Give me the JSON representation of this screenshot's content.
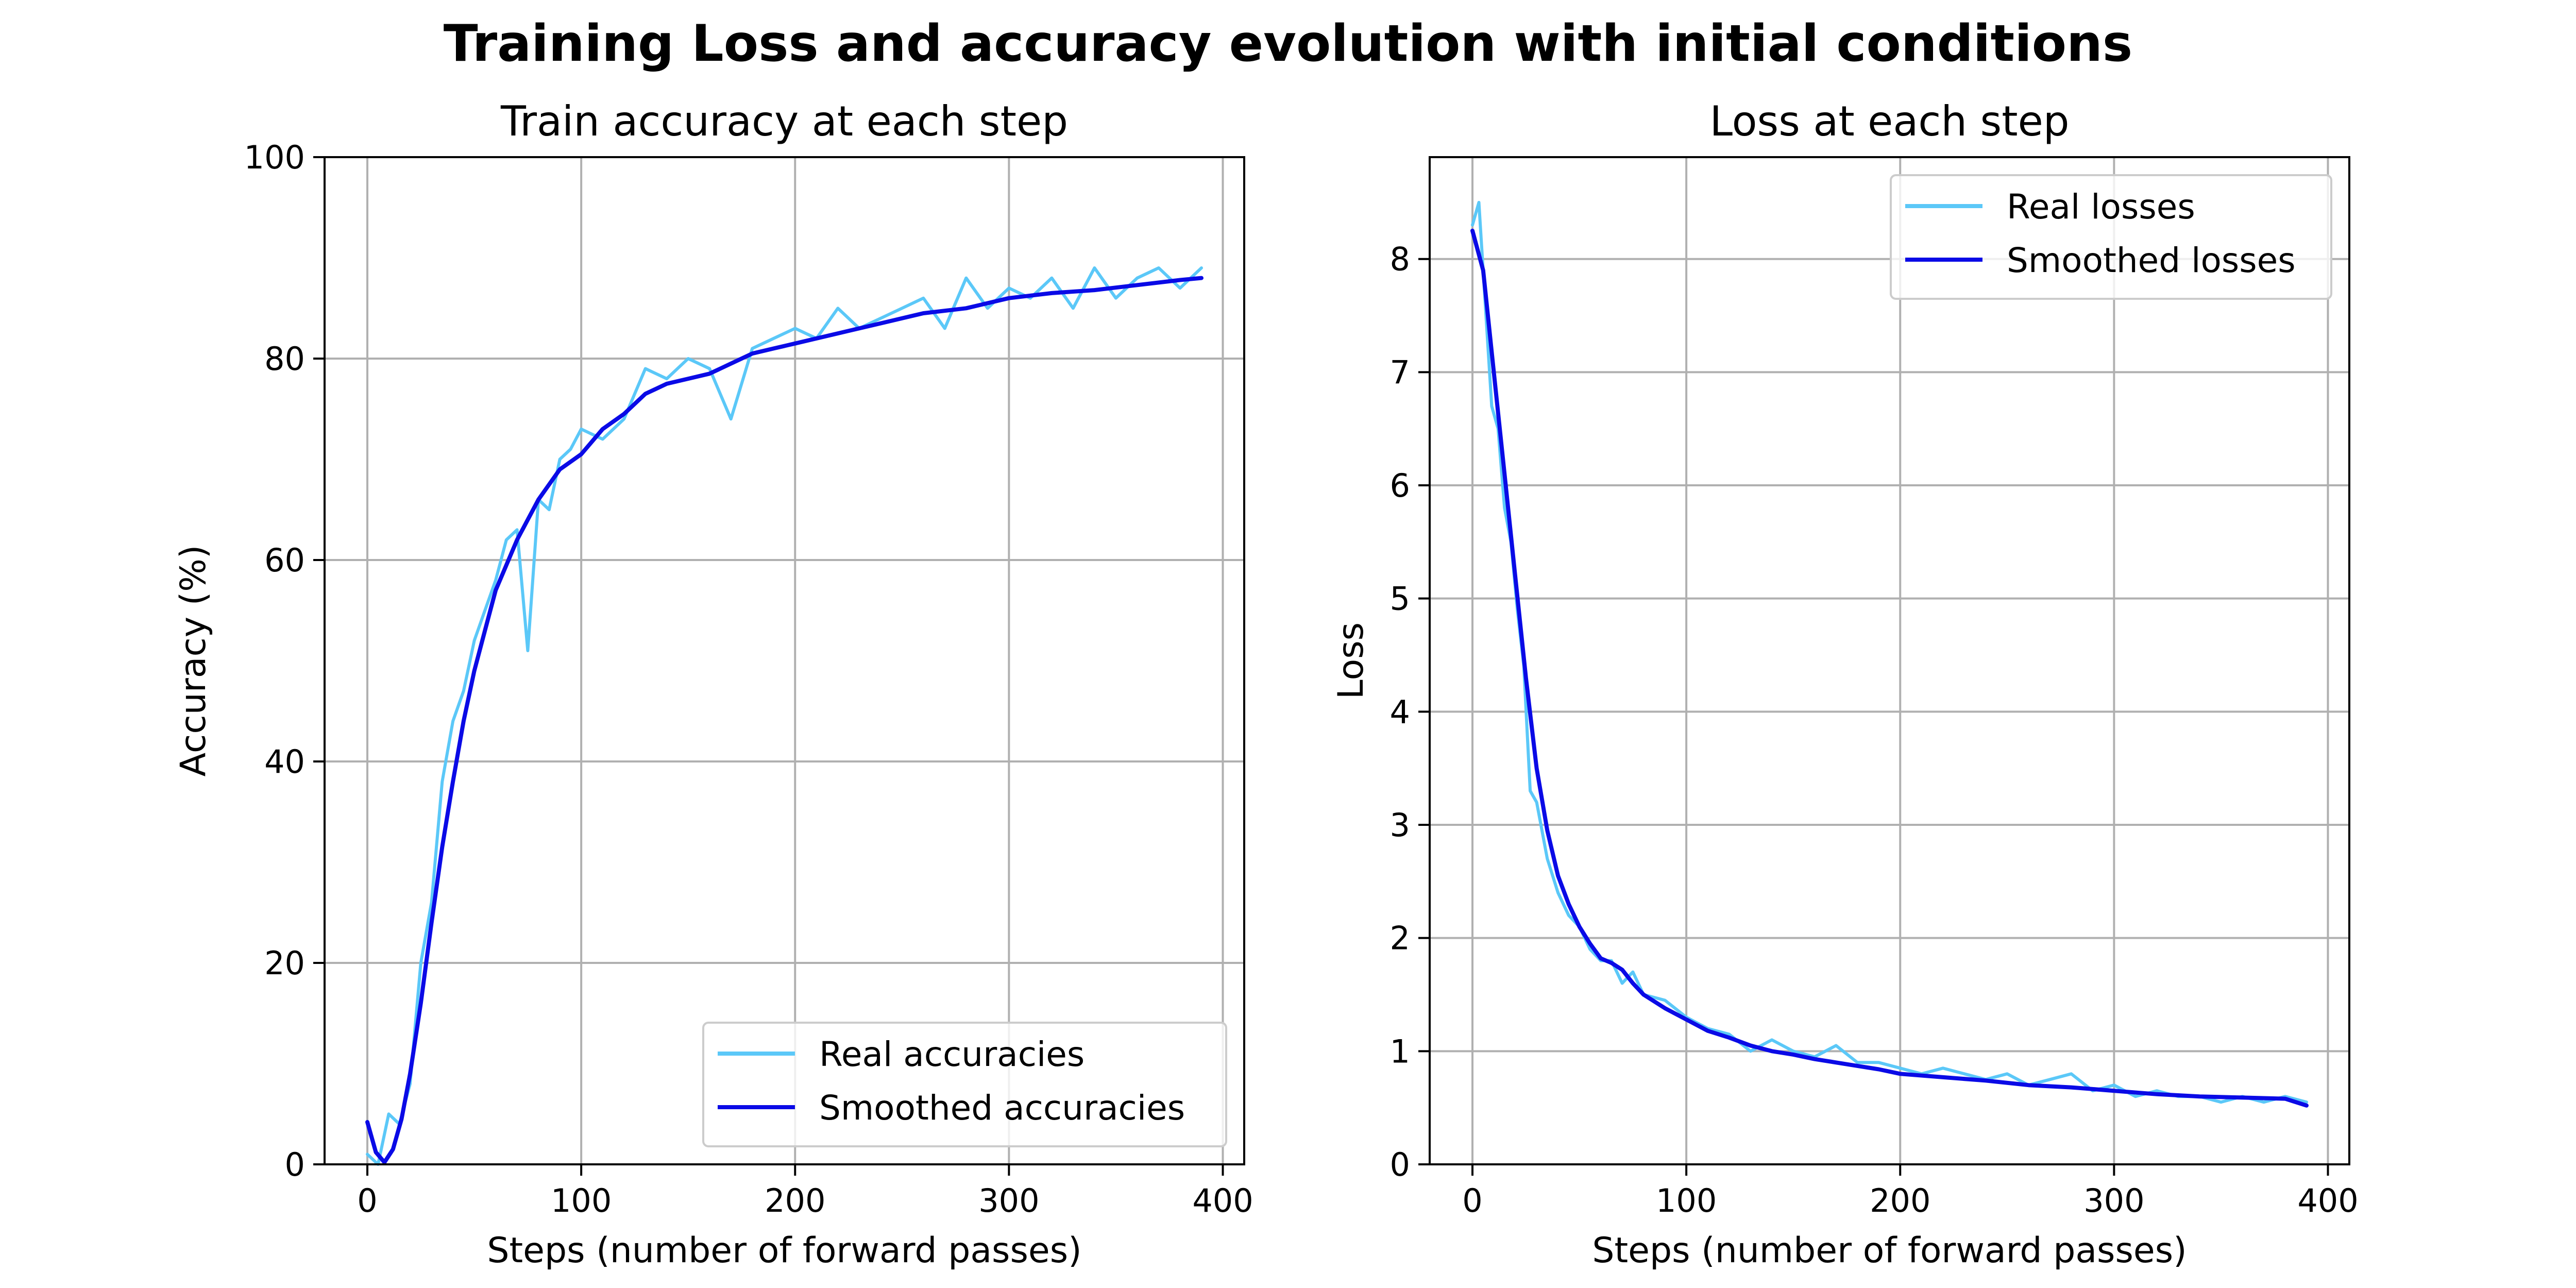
{
  "figure": {
    "title": "Training Loss and accuracy evolution with initial conditions"
  },
  "colors": {
    "real": "#5bc8f8",
    "smoothed": "#0a0ae6"
  },
  "chart_data": [
    {
      "id": "accuracy",
      "type": "line",
      "title": "Train accuracy at each step",
      "xlabel": "Steps (number of forward passes)",
      "ylabel": "Accuracy (%)",
      "xlim": [
        -20,
        410
      ],
      "ylim": [
        0,
        100
      ],
      "xticks": [
        0,
        100,
        200,
        300,
        400
      ],
      "yticks": [
        0,
        20,
        40,
        60,
        80,
        100
      ],
      "grid": true,
      "legend": "lower-right",
      "series": [
        {
          "name": "Real accuracies",
          "color": "#5bc8f8",
          "x": [
            0,
            5,
            10,
            15,
            20,
            25,
            30,
            35,
            40,
            45,
            50,
            55,
            60,
            65,
            70,
            75,
            80,
            85,
            90,
            95,
            100,
            110,
            120,
            130,
            140,
            150,
            160,
            170,
            180,
            190,
            200,
            210,
            220,
            230,
            240,
            250,
            260,
            270,
            280,
            290,
            300,
            310,
            320,
            330,
            340,
            350,
            360,
            370,
            380,
            390
          ],
          "y": [
            1,
            0,
            5,
            4,
            8,
            20,
            26,
            38,
            44,
            47,
            52,
            55,
            58,
            62,
            63,
            51,
            66,
            65,
            70,
            71,
            73,
            72,
            74,
            79,
            78,
            80,
            79,
            74,
            81,
            82,
            83,
            82,
            85,
            83,
            84,
            85,
            86,
            83,
            88,
            85,
            87,
            86,
            88,
            85,
            89,
            86,
            88,
            89,
            87,
            89
          ]
        },
        {
          "name": "Smoothed accuracies",
          "color": "#0a0ae6",
          "x": [
            0,
            4,
            8,
            12,
            16,
            20,
            25,
            30,
            35,
            40,
            45,
            50,
            55,
            60,
            70,
            80,
            90,
            100,
            110,
            120,
            130,
            140,
            150,
            160,
            170,
            180,
            190,
            200,
            220,
            240,
            260,
            280,
            300,
            320,
            340,
            360,
            380,
            390
          ],
          "y": [
            4.2,
            1.2,
            0.2,
            1.5,
            4.5,
            9,
            16,
            24,
            31.5,
            38,
            44,
            49,
            53,
            57,
            62,
            66,
            69,
            70.5,
            73,
            74.5,
            76.5,
            77.5,
            78,
            78.5,
            79.5,
            80.5,
            81,
            81.5,
            82.5,
            83.5,
            84.5,
            85,
            86,
            86.5,
            86.8,
            87.3,
            87.8,
            88
          ]
        }
      ]
    },
    {
      "id": "loss",
      "type": "line",
      "title": "Loss at each step",
      "xlabel": "Steps (number of forward passes)",
      "ylabel": "Loss",
      "xlim": [
        -20,
        410
      ],
      "ylim": [
        0,
        8.9
      ],
      "xticks": [
        0,
        100,
        200,
        300,
        400
      ],
      "yticks": [
        0,
        1,
        2,
        3,
        4,
        5,
        6,
        7,
        8
      ],
      "grid": true,
      "legend": "upper-right",
      "series": [
        {
          "name": "Real losses",
          "color": "#5bc8f8",
          "x": [
            0,
            3,
            6,
            9,
            12,
            15,
            18,
            21,
            24,
            27,
            30,
            35,
            40,
            45,
            50,
            55,
            60,
            65,
            70,
            75,
            80,
            90,
            100,
            110,
            120,
            130,
            140,
            150,
            160,
            170,
            180,
            190,
            200,
            210,
            220,
            230,
            240,
            250,
            260,
            270,
            280,
            290,
            300,
            310,
            320,
            330,
            340,
            350,
            360,
            370,
            380,
            390
          ],
          "y": [
            8.3,
            8.5,
            7.6,
            6.7,
            6.5,
            5.8,
            5.5,
            4.9,
            4.4,
            3.3,
            3.2,
            2.7,
            2.4,
            2.2,
            2.1,
            1.9,
            1.8,
            1.8,
            1.6,
            1.7,
            1.5,
            1.45,
            1.3,
            1.2,
            1.15,
            1.0,
            1.1,
            1.0,
            0.95,
            1.05,
            0.9,
            0.9,
            0.85,
            0.8,
            0.85,
            0.8,
            0.75,
            0.8,
            0.7,
            0.75,
            0.8,
            0.65,
            0.7,
            0.6,
            0.65,
            0.6,
            0.6,
            0.55,
            0.6,
            0.55,
            0.6,
            0.55
          ]
        },
        {
          "name": "Smoothed losses",
          "color": "#0a0ae6",
          "x": [
            0,
            5,
            10,
            15,
            20,
            25,
            30,
            35,
            40,
            45,
            50,
            55,
            60,
            65,
            70,
            75,
            80,
            90,
            100,
            110,
            120,
            130,
            140,
            150,
            160,
            170,
            180,
            190,
            200,
            220,
            240,
            260,
            280,
            300,
            320,
            340,
            360,
            380,
            390
          ],
          "y": [
            8.25,
            7.9,
            7.0,
            6.1,
            5.2,
            4.3,
            3.5,
            2.95,
            2.55,
            2.3,
            2.1,
            1.95,
            1.82,
            1.78,
            1.72,
            1.6,
            1.5,
            1.38,
            1.28,
            1.18,
            1.12,
            1.05,
            1.0,
            0.97,
            0.93,
            0.9,
            0.87,
            0.84,
            0.8,
            0.77,
            0.74,
            0.7,
            0.68,
            0.65,
            0.62,
            0.6,
            0.59,
            0.58,
            0.52
          ]
        }
      ]
    }
  ]
}
